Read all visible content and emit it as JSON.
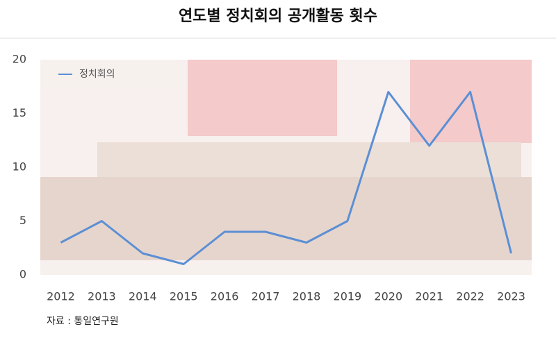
{
  "chart_data": {
    "type": "line",
    "title": "연도별 정치회의 공개활동 횟수",
    "categories": [
      "2012",
      "2013",
      "2014",
      "2015",
      "2016",
      "2017",
      "2018",
      "2019",
      "2020",
      "2021",
      "2022",
      "2023"
    ],
    "series": [
      {
        "name": "정치회의",
        "color": "#5b8fd4",
        "values": [
          3,
          5,
          2,
          1,
          4,
          4,
          3,
          5,
          17,
          12,
          17,
          2
        ]
      }
    ],
    "ylim": [
      0,
      20
    ],
    "yticks": [
      0,
      5,
      10,
      15,
      20
    ],
    "grid": false,
    "source": "자료 : 통일연구원"
  }
}
